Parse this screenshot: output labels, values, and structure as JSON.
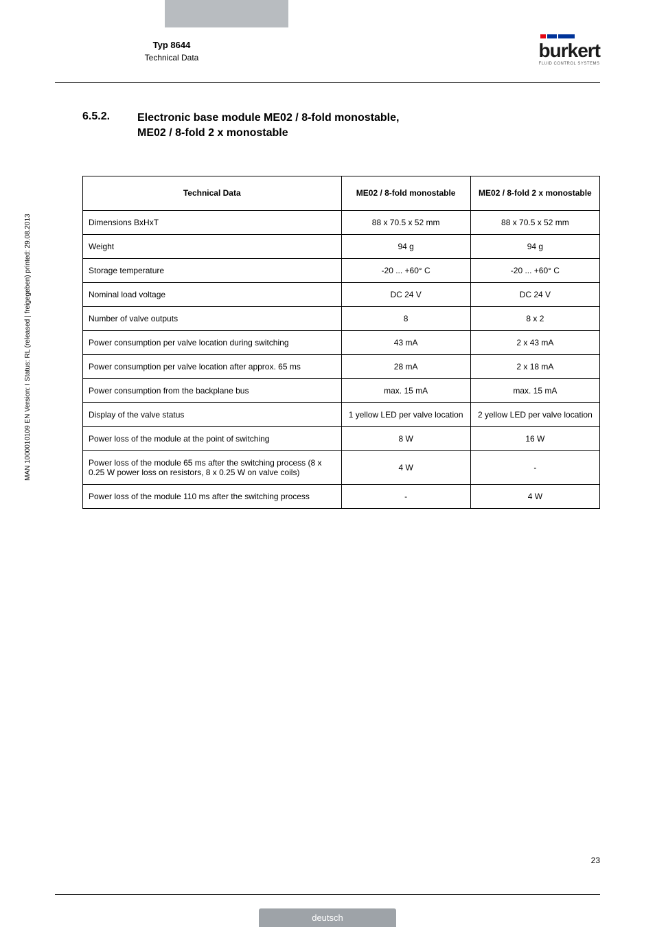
{
  "header": {
    "title_main": "Typ 8644",
    "title_sub": "Technical Data",
    "logo_name": "burkert",
    "logo_tagline": "FLUID CONTROL SYSTEMS",
    "logo_bars": [
      {
        "color": "#e30613",
        "w": 8
      },
      {
        "color": "#003399",
        "w": 14
      },
      {
        "color": "#003399",
        "w": 24
      }
    ]
  },
  "section": {
    "number": "6.5.2.",
    "title_line1": "Electronic base module ME02 / 8-fold monostable,",
    "title_line2": "ME02 / 8-fold 2 x monostable"
  },
  "table": {
    "headers": [
      "Technical Data",
      "ME02 / 8-fold monostable",
      "ME02 / 8-fold 2 x monostable"
    ],
    "rows": [
      {
        "label": "Dimensions BxHxT",
        "c1": "88 x 70.5 x 52 mm",
        "c2": "88 x 70.5 x 52 mm"
      },
      {
        "label": "Weight",
        "c1": "94 g",
        "c2": "94 g"
      },
      {
        "label": "Storage temperature",
        "c1": "-20 ... +60° C",
        "c2": "-20 ... +60° C"
      },
      {
        "label": "Nominal load voltage",
        "c1": "DC 24 V",
        "c2": "DC 24 V"
      },
      {
        "label": "Number of valve outputs",
        "c1": "8",
        "c2": "8 x 2"
      },
      {
        "label": "Power consumption per valve location during switching",
        "c1": "43 mA",
        "c2": "2 x 43 mA"
      },
      {
        "label": "Power consumption per valve location after approx. 65 ms",
        "c1": "28 mA",
        "c2": "2 x 18 mA"
      },
      {
        "label": "Power consumption from the backplane bus",
        "c1": "max. 15 mA",
        "c2": "max. 15 mA"
      },
      {
        "label": "Display of the valve status",
        "c1": "1 yellow LED per valve location",
        "c2": "2 yellow LED per valve location"
      },
      {
        "label": "Power loss of the module at the point of switching",
        "c1": "8 W",
        "c2": "16 W"
      },
      {
        "label": "Power loss of the module 65 ms after the switching process (8 x 0.25 W power loss on resistors, 8 x 0.25 W on valve coils)",
        "c1": "4 W",
        "c2": "-"
      },
      {
        "label": "Power loss of the module 110 ms after the switching process",
        "c1": "-",
        "c2": "4 W"
      }
    ]
  },
  "side_text": "MAN 1000010109 EN Version: I Status: RL (released | freigegeben) printed: 29.08.2013",
  "page_number": "23",
  "footer_label": "deutsch",
  "style": {
    "page_bg": "#ffffff",
    "tab_gray": "#b8bcc0",
    "footer_gray": "#9ea3a8",
    "border_color": "#000000",
    "body_fontsize": 12,
    "heading_fontsize": 16
  }
}
